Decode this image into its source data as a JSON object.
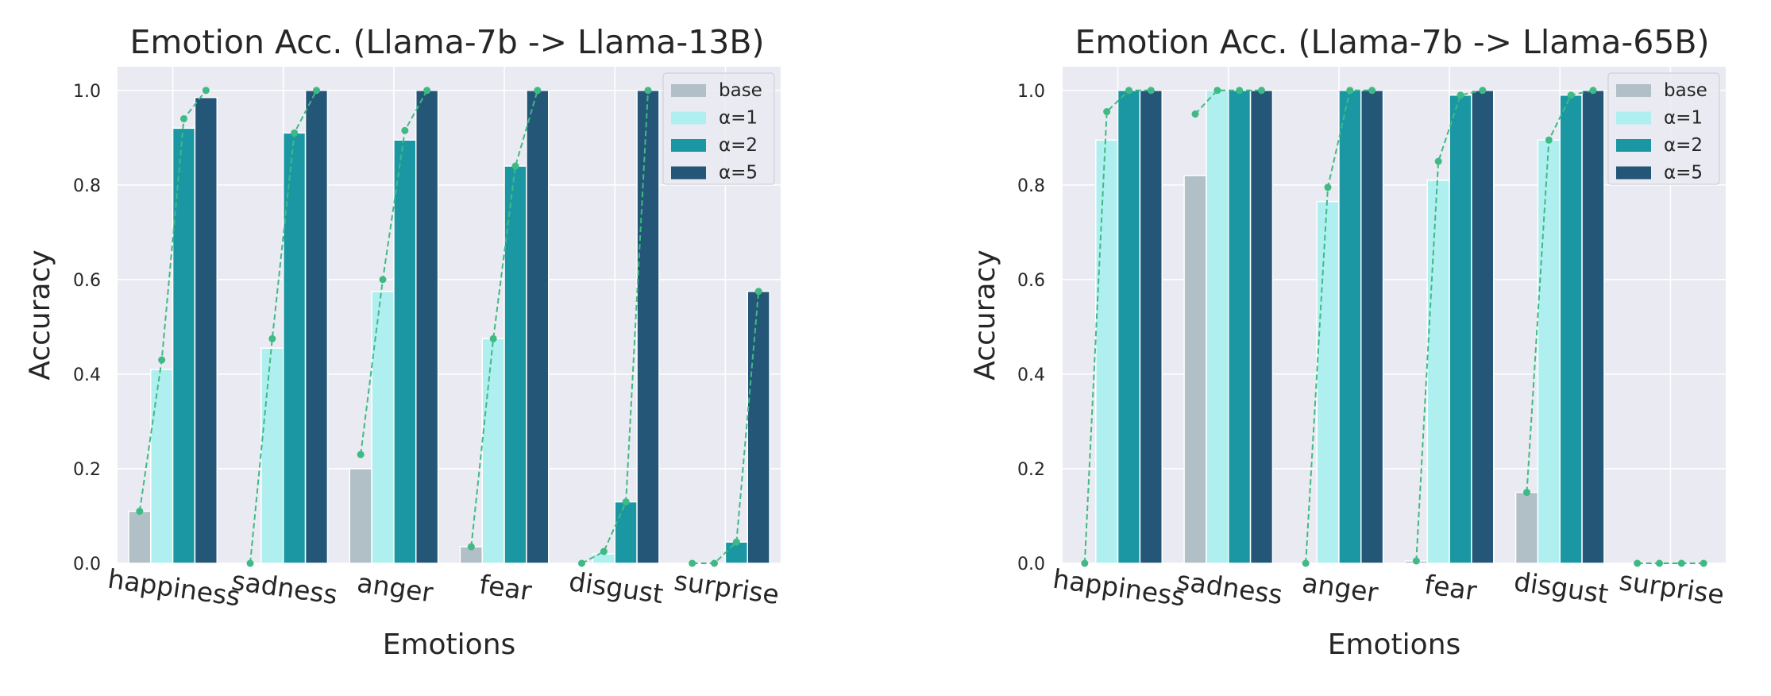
{
  "colors": {
    "base": "#b1bfc6",
    "a1": "#b0eff0",
    "a2": "#1a97a3",
    "a5": "#235677",
    "line": "#3fba84",
    "plot_bg": "#eaeaf2",
    "grid": "#ffffff"
  },
  "chart_data": [
    {
      "type": "bar",
      "title": "Emotion Acc. (Llama-7b -> Llama-13B)",
      "xlabel": "Emotions",
      "ylabel": "Accuracy",
      "ylim": [
        0,
        1.05
      ],
      "yticks": [
        "0.0",
        "0.2",
        "0.4",
        "0.6",
        "0.8",
        "1.0"
      ],
      "categories": [
        "happiness",
        "sadness",
        "anger",
        "fear",
        "disgust",
        "surprise"
      ],
      "legend_position": "top-right",
      "grid": true,
      "series": [
        {
          "name": "base",
          "values": [
            0.11,
            0.0,
            0.2,
            0.035,
            0.0,
            0.0
          ]
        },
        {
          "name": "α=1",
          "values": [
            0.41,
            0.455,
            0.575,
            0.475,
            0.02,
            0.0
          ]
        },
        {
          "name": "α=2",
          "values": [
            0.92,
            0.91,
            0.895,
            0.84,
            0.13,
            0.045
          ]
        },
        {
          "name": "α=5",
          "values": [
            0.985,
            1.0,
            1.0,
            1.0,
            1.0,
            0.575
          ]
        }
      ],
      "trend_line": [
        [
          0.11,
          0.43,
          0.94,
          1.0
        ],
        [
          0.0,
          0.475,
          0.91,
          1.0
        ],
        [
          0.23,
          0.6,
          0.915,
          1.0
        ],
        [
          0.035,
          0.475,
          0.84,
          1.0
        ],
        [
          0.0,
          0.025,
          0.13,
          1.0
        ],
        [
          0.0,
          0.0,
          0.045,
          0.575
        ]
      ]
    },
    {
      "type": "bar",
      "title": "Emotion Acc. (Llama-7b -> Llama-65B)",
      "xlabel": "Emotions",
      "ylabel": "Accuracy",
      "ylim": [
        0,
        1.05
      ],
      "yticks": [
        "0.0",
        "0.2",
        "0.4",
        "0.6",
        "0.8",
        "1.0"
      ],
      "categories": [
        "happiness",
        "sadness",
        "anger",
        "fear",
        "disgust",
        "surprise"
      ],
      "legend_position": "top-right",
      "grid": true,
      "series": [
        {
          "name": "base",
          "values": [
            0.0,
            0.82,
            0.0,
            0.005,
            0.15,
            0.0
          ]
        },
        {
          "name": "α=1",
          "values": [
            0.895,
            1.0,
            0.765,
            0.81,
            0.895,
            0.0
          ]
        },
        {
          "name": "α=2",
          "values": [
            1.0,
            1.0,
            1.0,
            0.99,
            0.99,
            0.0
          ]
        },
        {
          "name": "α=5",
          "values": [
            1.0,
            1.0,
            1.0,
            1.0,
            1.0,
            0.0
          ]
        }
      ],
      "trend_line": [
        [
          0.0,
          0.955,
          1.0,
          1.0
        ],
        [
          0.95,
          1.0,
          1.0,
          1.0
        ],
        [
          0.0,
          0.795,
          1.0,
          1.0
        ],
        [
          0.005,
          0.85,
          0.99,
          1.0
        ],
        [
          0.15,
          0.895,
          0.99,
          1.0
        ],
        [
          0.0,
          0.0,
          0.0,
          0.0
        ]
      ]
    }
  ]
}
